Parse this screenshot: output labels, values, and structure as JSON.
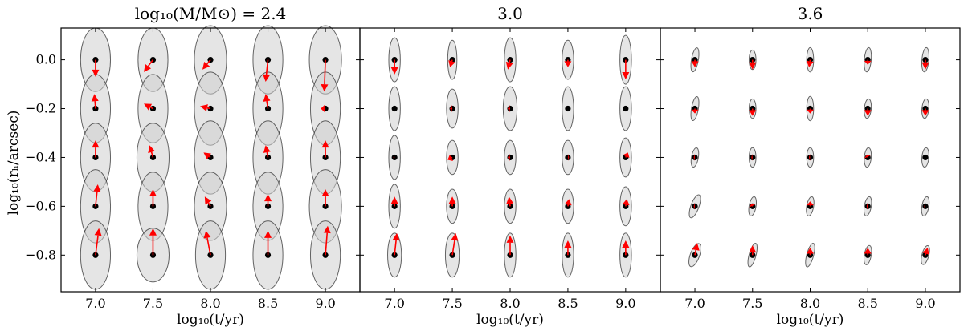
{
  "chart_data": {
    "type": "scatter",
    "ylabel": "log₁₀(rₕ/arcsec)",
    "xlabel": "log₁₀(t/yr)",
    "x_ticks": [
      "7.0",
      "7.5",
      "8.0",
      "8.5",
      "9.0"
    ],
    "y_ticks": [
      "0.0",
      "−0.2",
      "−0.4",
      "−0.6",
      "−0.8"
    ],
    "xlim": [
      6.7,
      9.3
    ],
    "ylim": [
      -0.95,
      0.13
    ],
    "grid": false,
    "panels": [
      {
        "title": "log₁₀(M/M⊙) = 2.4",
        "points": [
          {
            "t": 7.0,
            "r": 0.0,
            "dt": 0.0,
            "dr": -0.07,
            "sx": 0.13,
            "sy": 0.13,
            "rot": 0
          },
          {
            "t": 7.0,
            "r": -0.2,
            "dt": -0.01,
            "dr": 0.06,
            "sx": 0.13,
            "sy": 0.14,
            "rot": 0
          },
          {
            "t": 7.0,
            "r": -0.4,
            "dt": 0.0,
            "dr": 0.07,
            "sx": 0.13,
            "sy": 0.14,
            "rot": 0
          },
          {
            "t": 7.0,
            "r": -0.6,
            "dt": 0.02,
            "dr": 0.09,
            "sx": 0.13,
            "sy": 0.15,
            "rot": 0
          },
          {
            "t": 7.0,
            "r": -0.8,
            "dt": 0.03,
            "dr": 0.11,
            "sx": 0.13,
            "sy": 0.14,
            "rot": 0
          },
          {
            "t": 7.5,
            "r": 0.0,
            "dt": -0.08,
            "dr": -0.05,
            "sx": 0.13,
            "sy": 0.13,
            "rot": 0
          },
          {
            "t": 7.5,
            "r": -0.2,
            "dt": -0.08,
            "dr": 0.02,
            "sx": 0.13,
            "sy": 0.14,
            "rot": 0
          },
          {
            "t": 7.5,
            "r": -0.4,
            "dt": -0.03,
            "dr": 0.05,
            "sx": 0.14,
            "sy": 0.14,
            "rot": 0
          },
          {
            "t": 7.5,
            "r": -0.6,
            "dt": 0.0,
            "dr": 0.07,
            "sx": 0.13,
            "sy": 0.14,
            "rot": 0
          },
          {
            "t": 7.5,
            "r": -0.8,
            "dt": 0.0,
            "dr": 0.11,
            "sx": 0.14,
            "sy": 0.11,
            "rot": 0
          },
          {
            "t": 8.0,
            "r": 0.0,
            "dt": -0.07,
            "dr": -0.04,
            "sx": 0.14,
            "sy": 0.14,
            "rot": 0
          },
          {
            "t": 8.0,
            "r": -0.2,
            "dt": -0.09,
            "dr": 0.01,
            "sx": 0.14,
            "sy": 0.15,
            "rot": 0
          },
          {
            "t": 8.0,
            "r": -0.4,
            "dt": -0.06,
            "dr": 0.02,
            "sx": 0.14,
            "sy": 0.15,
            "rot": 0
          },
          {
            "t": 8.0,
            "r": -0.6,
            "dt": -0.05,
            "dr": 0.04,
            "sx": 0.14,
            "sy": 0.14,
            "rot": 0
          },
          {
            "t": 8.0,
            "r": -0.8,
            "dt": -0.04,
            "dr": 0.1,
            "sx": 0.13,
            "sy": 0.14,
            "rot": 0
          },
          {
            "t": 8.5,
            "r": 0.0,
            "dt": -0.02,
            "dr": -0.09,
            "sx": 0.13,
            "sy": 0.14,
            "rot": 0
          },
          {
            "t": 8.5,
            "r": -0.2,
            "dt": -0.02,
            "dr": 0.06,
            "sx": 0.13,
            "sy": 0.15,
            "rot": 0
          },
          {
            "t": 8.5,
            "r": -0.4,
            "dt": -0.02,
            "dr": 0.05,
            "sx": 0.13,
            "sy": 0.15,
            "rot": 0
          },
          {
            "t": 8.5,
            "r": -0.6,
            "dt": 0.0,
            "dr": 0.05,
            "sx": 0.13,
            "sy": 0.14,
            "rot": 0
          },
          {
            "t": 8.5,
            "r": -0.8,
            "dt": 0.0,
            "dr": 0.1,
            "sx": 0.13,
            "sy": 0.14,
            "rot": 0
          },
          {
            "t": 9.0,
            "r": 0.0,
            "dt": -0.01,
            "dr": -0.13,
            "sx": 0.14,
            "sy": 0.14,
            "rot": 0
          },
          {
            "t": 9.0,
            "r": -0.2,
            "dt": -0.04,
            "dr": 0.0,
            "sx": 0.13,
            "sy": 0.15,
            "rot": 0
          },
          {
            "t": 9.0,
            "r": -0.4,
            "dt": 0.0,
            "dr": 0.07,
            "sx": 0.13,
            "sy": 0.15,
            "rot": 0
          },
          {
            "t": 9.0,
            "r": -0.6,
            "dt": 0.0,
            "dr": 0.07,
            "sx": 0.14,
            "sy": 0.15,
            "rot": 0
          },
          {
            "t": 9.0,
            "r": -0.8,
            "dt": 0.02,
            "dr": 0.12,
            "sx": 0.13,
            "sy": 0.14,
            "rot": 0
          }
        ]
      },
      {
        "title": "3.0",
        "points": [
          {
            "t": 7.0,
            "r": 0.0,
            "dt": 0.0,
            "dr": -0.06,
            "sx": 0.05,
            "sy": 0.09,
            "rot": 0
          },
          {
            "t": 7.0,
            "r": -0.2,
            "dt": 0.0,
            "dr": 0.0,
            "sx": 0.05,
            "sy": 0.09,
            "rot": 0
          },
          {
            "t": 7.0,
            "r": -0.4,
            "dt": -0.01,
            "dr": 0.0,
            "sx": 0.05,
            "sy": 0.09,
            "rot": 0
          },
          {
            "t": 7.0,
            "r": -0.6,
            "dt": 0.0,
            "dr": 0.04,
            "sx": 0.05,
            "sy": 0.09,
            "rot": 0
          },
          {
            "t": 7.0,
            "r": -0.8,
            "dt": 0.02,
            "dr": 0.09,
            "sx": 0.06,
            "sy": 0.09,
            "rot": 0
          },
          {
            "t": 7.5,
            "r": 0.0,
            "dt": -0.02,
            "dr": -0.03,
            "sx": 0.04,
            "sy": 0.08,
            "rot": 0
          },
          {
            "t": 7.5,
            "r": -0.2,
            "dt": -0.02,
            "dr": 0.0,
            "sx": 0.05,
            "sy": 0.08,
            "rot": 0
          },
          {
            "t": 7.5,
            "r": -0.4,
            "dt": -0.04,
            "dr": -0.01,
            "sx": 0.05,
            "sy": 0.07,
            "rot": 0
          },
          {
            "t": 7.5,
            "r": -0.6,
            "dt": 0.0,
            "dr": 0.04,
            "sx": 0.05,
            "sy": 0.07,
            "rot": 0
          },
          {
            "t": 7.5,
            "r": -0.8,
            "dt": 0.03,
            "dr": 0.09,
            "sx": 0.06,
            "sy": 0.09,
            "rot": 0
          },
          {
            "t": 8.0,
            "r": 0.0,
            "dt": -0.02,
            "dr": -0.04,
            "sx": 0.05,
            "sy": 0.09,
            "rot": 0
          },
          {
            "t": 8.0,
            "r": -0.2,
            "dt": -0.02,
            "dr": 0.0,
            "sx": 0.06,
            "sy": 0.09,
            "rot": 0
          },
          {
            "t": 8.0,
            "r": -0.4,
            "dt": -0.02,
            "dr": 0.0,
            "sx": 0.05,
            "sy": 0.07,
            "rot": 0
          },
          {
            "t": 8.0,
            "r": -0.6,
            "dt": -0.01,
            "dr": 0.04,
            "sx": 0.05,
            "sy": 0.07,
            "rot": 0
          },
          {
            "t": 8.0,
            "r": -0.8,
            "dt": 0.0,
            "dr": 0.08,
            "sx": 0.05,
            "sy": 0.09,
            "rot": 0
          },
          {
            "t": 8.5,
            "r": 0.0,
            "dt": 0.0,
            "dr": -0.03,
            "sx": 0.05,
            "sy": 0.08,
            "rot": 0
          },
          {
            "t": 8.5,
            "r": -0.2,
            "dt": 0.0,
            "dr": 0.0,
            "sx": 0.05,
            "sy": 0.09,
            "rot": 0
          },
          {
            "t": 8.5,
            "r": -0.4,
            "dt": 0.01,
            "dr": 0.0,
            "sx": 0.05,
            "sy": 0.07,
            "rot": 0
          },
          {
            "t": 8.5,
            "r": -0.6,
            "dt": 0.01,
            "dr": 0.03,
            "sx": 0.05,
            "sy": 0.07,
            "rot": 0
          },
          {
            "t": 8.5,
            "r": -0.8,
            "dt": 0.0,
            "dr": 0.06,
            "sx": 0.05,
            "sy": 0.09,
            "rot": 0
          },
          {
            "t": 9.0,
            "r": 0.0,
            "dt": 0.0,
            "dr": -0.08,
            "sx": 0.05,
            "sy": 0.1,
            "rot": 0
          },
          {
            "t": 9.0,
            "r": -0.2,
            "dt": 0.0,
            "dr": 0.0,
            "sx": 0.05,
            "sy": 0.09,
            "rot": 0
          },
          {
            "t": 9.0,
            "r": -0.4,
            "dt": 0.02,
            "dr": 0.02,
            "sx": 0.05,
            "sy": 0.08,
            "rot": 0
          },
          {
            "t": 9.0,
            "r": -0.6,
            "dt": 0.01,
            "dr": 0.03,
            "sx": 0.05,
            "sy": 0.08,
            "rot": 0
          },
          {
            "t": 9.0,
            "r": -0.8,
            "dt": 0.0,
            "dr": 0.06,
            "sx": 0.05,
            "sy": 0.09,
            "rot": 0
          }
        ]
      },
      {
        "title": "3.6",
        "points": [
          {
            "t": 7.0,
            "r": 0.0,
            "dt": 0.0,
            "dr": -0.03,
            "sx": 0.03,
            "sy": 0.05,
            "rot": 10
          },
          {
            "t": 7.0,
            "r": -0.2,
            "dt": 0.0,
            "dr": -0.02,
            "sx": 0.03,
            "sy": 0.05,
            "rot": 10
          },
          {
            "t": 7.0,
            "r": -0.4,
            "dt": -0.01,
            "dr": 0.0,
            "sx": 0.03,
            "sy": 0.04,
            "rot": 10
          },
          {
            "t": 7.0,
            "r": -0.6,
            "dt": -0.01,
            "dr": 0.0,
            "sx": 0.035,
            "sy": 0.05,
            "rot": 20
          },
          {
            "t": 7.0,
            "r": -0.8,
            "dt": 0.02,
            "dr": 0.05,
            "sx": 0.04,
            "sy": 0.05,
            "rot": 20
          },
          {
            "t": 7.5,
            "r": 0.0,
            "dt": 0.0,
            "dr": -0.04,
            "sx": 0.03,
            "sy": 0.04,
            "rot": 0
          },
          {
            "t": 7.5,
            "r": -0.2,
            "dt": 0.0,
            "dr": -0.03,
            "sx": 0.03,
            "sy": 0.04,
            "rot": 0
          },
          {
            "t": 7.5,
            "r": -0.4,
            "dt": -0.01,
            "dr": 0.0,
            "sx": 0.03,
            "sy": 0.04,
            "rot": 0
          },
          {
            "t": 7.5,
            "r": -0.6,
            "dt": -0.01,
            "dr": 0.01,
            "sx": 0.03,
            "sy": 0.04,
            "rot": 10
          },
          {
            "t": 7.5,
            "r": -0.8,
            "dt": 0.0,
            "dr": 0.04,
            "sx": 0.03,
            "sy": 0.05,
            "rot": 15
          },
          {
            "t": 8.0,
            "r": 0.0,
            "dt": -0.01,
            "dr": -0.03,
            "sx": 0.03,
            "sy": 0.05,
            "rot": 0
          },
          {
            "t": 8.0,
            "r": -0.2,
            "dt": 0.0,
            "dr": -0.02,
            "sx": 0.03,
            "sy": 0.05,
            "rot": 0
          },
          {
            "t": 8.0,
            "r": -0.4,
            "dt": -0.01,
            "dr": 0.0,
            "sx": 0.03,
            "sy": 0.04,
            "rot": 0
          },
          {
            "t": 8.0,
            "r": -0.6,
            "dt": 0.0,
            "dr": 0.02,
            "sx": 0.03,
            "sy": 0.04,
            "rot": 10
          },
          {
            "t": 8.0,
            "r": -0.8,
            "dt": 0.0,
            "dr": 0.03,
            "sx": 0.03,
            "sy": 0.05,
            "rot": 15
          },
          {
            "t": 8.5,
            "r": 0.0,
            "dt": 0.0,
            "dr": -0.02,
            "sx": 0.03,
            "sy": 0.05,
            "rot": 5
          },
          {
            "t": 8.5,
            "r": -0.2,
            "dt": 0.0,
            "dr": -0.03,
            "sx": 0.03,
            "sy": 0.04,
            "rot": 5
          },
          {
            "t": 8.5,
            "r": -0.4,
            "dt": -0.01,
            "dr": 0.01,
            "sx": 0.03,
            "sy": 0.04,
            "rot": 5
          },
          {
            "t": 8.5,
            "r": -0.6,
            "dt": -0.01,
            "dr": 0.0,
            "sx": 0.03,
            "sy": 0.04,
            "rot": 10
          },
          {
            "t": 8.5,
            "r": -0.8,
            "dt": 0.0,
            "dr": 0.03,
            "sx": 0.03,
            "sy": 0.04,
            "rot": 10
          },
          {
            "t": 9.0,
            "r": 0.0,
            "dt": 0.0,
            "dr": -0.04,
            "sx": 0.03,
            "sy": 0.05,
            "rot": 5
          },
          {
            "t": 9.0,
            "r": -0.2,
            "dt": 0.0,
            "dr": -0.03,
            "sx": 0.03,
            "sy": 0.04,
            "rot": 5
          },
          {
            "t": 9.0,
            "r": -0.4,
            "dt": 0.0,
            "dr": 0.0,
            "sx": 0.03,
            "sy": 0.04,
            "rot": 5
          },
          {
            "t": 9.0,
            "r": -0.6,
            "dt": -0.01,
            "dr": 0.0,
            "sx": 0.03,
            "sy": 0.04,
            "rot": 10
          },
          {
            "t": 9.0,
            "r": -0.8,
            "dt": 0.02,
            "dr": 0.03,
            "sx": 0.03,
            "sy": 0.04,
            "rot": 15
          }
        ]
      }
    ]
  },
  "colors": {
    "ellipse_fill": "#cfcfcf",
    "arrow": "#ff0000",
    "dot": "#000000"
  }
}
